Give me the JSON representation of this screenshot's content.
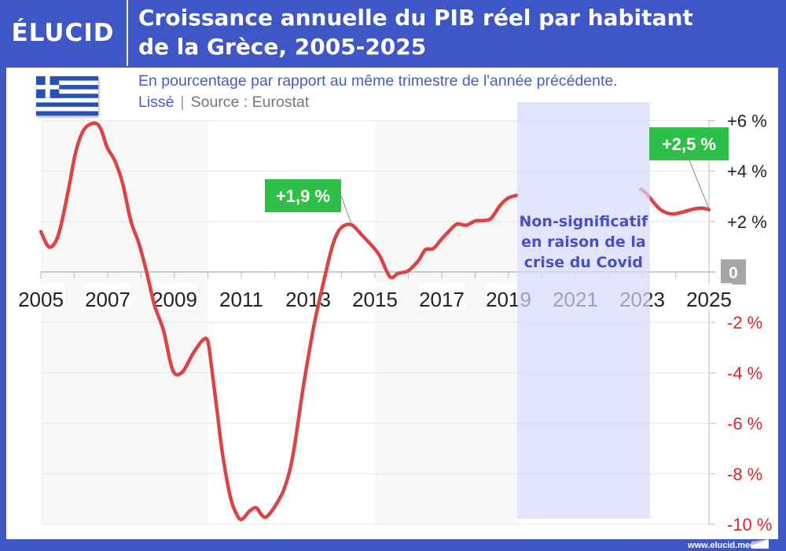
{
  "header": {
    "logo": "ÉLUCID",
    "title_line1": "Croissance annuelle du PIB réel par habitant",
    "title_line2": "de la Grèce, 2005-2025",
    "subtitle": "En pourcentage par rapport au même trimestre de l'année précédente.",
    "note": "Lissé",
    "separator": "|",
    "source": "Source : Eurostat",
    "flag_icon": "greece-flag-icon"
  },
  "footer": {
    "website": "www.elucid.media"
  },
  "colors": {
    "frame": "#3f56c6",
    "line": "#dc4346",
    "label_green": "#2fbe47",
    "negative_tick": "#d9232a",
    "covid_band": "#e3e4fb",
    "covid_text": "#4a50c0"
  },
  "chart_data": {
    "type": "line",
    "title": "Croissance annuelle du PIB réel par habitant de la Grèce, 2005-2025",
    "xlabel": "",
    "ylabel": "",
    "xlim": [
      2005,
      2025
    ],
    "ylim": [
      -10,
      6
    ],
    "grid": true,
    "x_tick_labels": [
      "2005",
      "2007",
      "2009",
      "2011",
      "2013",
      "2015",
      "2017",
      "2019",
      "2021",
      "2023",
      "2025"
    ],
    "y_tick_labels": [
      {
        "value": 6,
        "label": "+6 %"
      },
      {
        "value": 4,
        "label": "+4 %"
      },
      {
        "value": 2,
        "label": "+2 %"
      },
      {
        "value": 0,
        "label": "0"
      },
      {
        "value": -2,
        "label": "-2 %"
      },
      {
        "value": -4,
        "label": "-4 %"
      },
      {
        "value": -6,
        "label": "-6 %"
      },
      {
        "value": -8,
        "label": "-8 %"
      },
      {
        "value": -10,
        "label": "-10 %"
      }
    ],
    "series": [
      {
        "x": [
          2005.0,
          2005.26,
          2005.53,
          2005.81,
          2006.04,
          2006.28,
          2006.59,
          2006.79,
          2006.98,
          2007.22,
          2007.45,
          2007.69,
          2007.93,
          2008.16,
          2008.4,
          2008.67,
          2008.87,
          2009.02,
          2009.26,
          2009.57,
          2009.85,
          2010.0,
          2010.12,
          2010.28,
          2010.44,
          2010.67,
          2010.87,
          2011.02,
          2011.26,
          2011.45,
          2011.61,
          2011.77,
          2012.08,
          2012.32,
          2012.55,
          2012.87,
          2013.18,
          2013.5,
          2013.73,
          2013.96,
          2014.28,
          2014.59,
          2014.91,
          2015.14,
          2015.45,
          2015.69,
          2015.96,
          2016.12,
          2016.32,
          2016.51,
          2016.75,
          2016.98,
          2017.22,
          2017.46,
          2017.73,
          2018.0,
          2018.28,
          2018.48,
          2018.75,
          2018.99,
          2019.26
        ],
        "y": [
          1.6,
          0.98,
          1.49,
          3.16,
          4.73,
          5.62,
          5.9,
          5.68,
          4.95,
          4.39,
          3.5,
          2.04,
          1.15,
          0.03,
          -1.31,
          -2.31,
          -3.54,
          -4.04,
          -3.93,
          -3.2,
          -2.7,
          -2.76,
          -3.88,
          -5.56,
          -7.23,
          -8.9,
          -9.63,
          -9.8,
          -9.46,
          -9.35,
          -9.63,
          -9.69,
          -9.13,
          -8.46,
          -7.23,
          -4.44,
          -2.09,
          -0.19,
          1.04,
          1.71,
          1.88,
          1.49,
          1.04,
          0.65,
          -0.19,
          -0.06,
          0.02,
          0.19,
          0.48,
          0.88,
          0.93,
          1.28,
          1.62,
          1.9,
          1.85,
          2.02,
          2.04,
          2.13,
          2.64,
          2.93,
          3.04
        ]
      },
      {
        "x": [
          2022.96,
          2023.1,
          2023.31,
          2023.55,
          2023.86,
          2024.17,
          2024.57,
          2024.8,
          2025.0
        ],
        "y": [
          3.27,
          3.15,
          2.81,
          2.47,
          2.3,
          2.36,
          2.5,
          2.53,
          2.47
        ],
        "faded_until": 2023.2
      }
    ],
    "annotations": [
      {
        "label": "+1,9 %",
        "x": 2014.28,
        "y": 1.9
      },
      {
        "label": "+2,5 %",
        "x": 2025.0,
        "y": 2.5
      }
    ],
    "shaded_region": {
      "x_start": 2019.26,
      "x_end": 2023.23,
      "label_lines": [
        "Non-significatif",
        "en raison de la",
        "crise du Covid"
      ]
    },
    "background_bands": [
      [
        2005,
        2010
      ],
      [
        2015,
        2019.26
      ]
    ]
  }
}
